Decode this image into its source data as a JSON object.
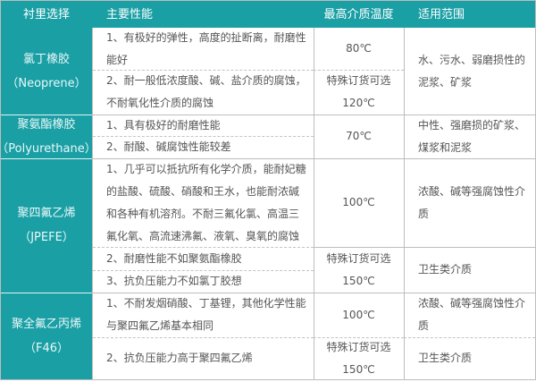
{
  "colors": {
    "header": "#1a9fa5",
    "text": "#555555"
  },
  "headers": [
    "衬里选择",
    "主要性能",
    "最高介质温度",
    "适用范围"
  ],
  "rows": [
    {
      "lining": [
        "氯丁橡胶",
        "（Neoprene）"
      ],
      "props": [
        [
          "1、有极好的弹性，高度的扯断离，耐磨性",
          "能好"
        ],
        [
          "2、耐一般低浓度酸、碱、盐介质的腐蚀，",
          "不耐氧化性介质的腐蚀"
        ]
      ],
      "temps": [
        [
          "80℃"
        ],
        [
          "特殊订货可选",
          "120℃"
        ]
      ],
      "scope": [
        [
          "水、污水、弱磨损性的",
          "泥浆、矿浆"
        ]
      ]
    },
    {
      "lining": [
        "聚氨酯橡胶",
        "（Polyurethane）"
      ],
      "props": [
        [
          "1、具有极好的耐磨性能"
        ],
        [
          "2、耐酸、碱腐蚀性能较差"
        ]
      ],
      "temps": [
        [
          "70℃"
        ]
      ],
      "scope": [
        [
          "中性、强磨损的矿浆、",
          "煤浆和泥浆"
        ]
      ]
    },
    {
      "lining": [
        "聚四氟乙烯",
        "（JPEFE）"
      ],
      "props": [
        [
          "1、几乎可以抵抗所有化学介质，能耐妃糖",
          "的盐酸、硫酸、硝酸和王水，也能耐浓碱",
          "和各种有机溶剂。不耐三氟化氯、高温三",
          "氟化氧、高流速沸氟、液氧、臭氧的腐蚀"
        ],
        [
          "2、耐磨性能不如聚氨酯橡胶"
        ],
        [
          "3、抗负压能力不如氯丁胶想"
        ]
      ],
      "temps": [
        [
          "100℃"
        ],
        [
          "特殊订货可选",
          "150℃"
        ]
      ],
      "scope": [
        [
          "浓酸、碱等强腐蚀性介",
          "质"
        ],
        [
          "卫生类介质"
        ]
      ]
    },
    {
      "lining": [
        "聚全氟乙丙烯",
        "（F46）"
      ],
      "props": [
        [
          "1、不耐发烟硝酸、丁基锂，其他化学性能",
          "与聚四氟乙烯基本相同"
        ],
        [
          "2、抗负压能力高于聚四氟乙烯"
        ]
      ],
      "temps": [
        [
          "100℃"
        ],
        [
          "特殊订货可选",
          "150℃"
        ]
      ],
      "scope": [
        [
          "浓酸、碱等强腐蚀性介",
          "质"
        ],
        [
          "卫生类介质"
        ]
      ]
    }
  ]
}
